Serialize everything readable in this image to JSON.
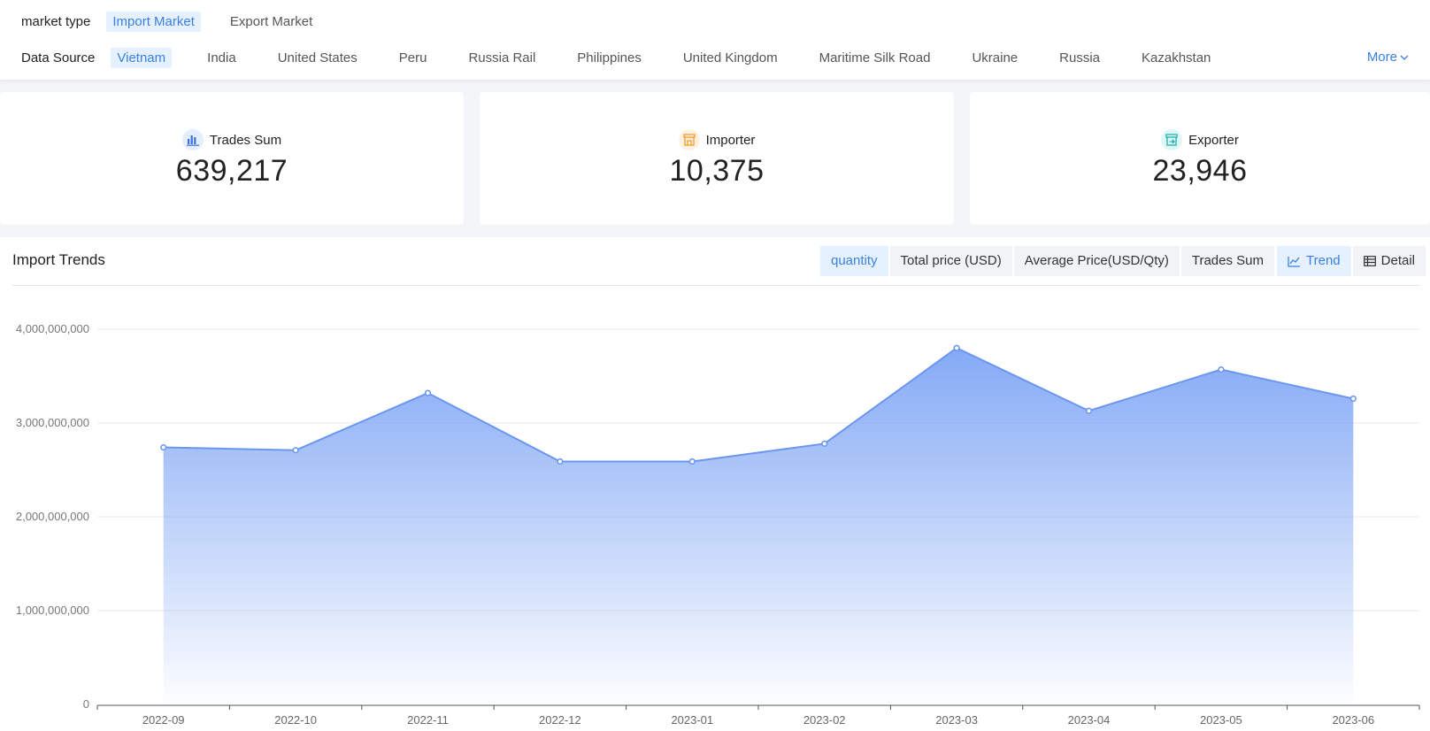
{
  "filters": {
    "market_type": {
      "label": "market type",
      "options": [
        "Import Market",
        "Export Market"
      ],
      "active": 0
    },
    "data_source": {
      "label": "Data Source",
      "options": [
        "Vietnam",
        "India",
        "United States",
        "Peru",
        "Russia Rail",
        "Philippines",
        "United Kingdom",
        "Maritime Silk Road",
        "Ukraine",
        "Russia",
        "Kazakhstan"
      ],
      "active": 0,
      "more_label": "More"
    }
  },
  "stats": [
    {
      "label": "Trades Sum",
      "value": "639,217",
      "icon": "bar-chart-icon",
      "color": "#3a6fe0"
    },
    {
      "label": "Importer",
      "value": "10,375",
      "icon": "store-icon",
      "color": "#f39a2b"
    },
    {
      "label": "Exporter",
      "value": "23,946",
      "icon": "export-store-icon",
      "color": "#19b3b0"
    }
  ],
  "chart_panel": {
    "title": "Import Trends",
    "metric_tabs": [
      "quantity",
      "Total price (USD)",
      "Average Price(USD/Qty)",
      "Trades Sum"
    ],
    "active_metric": 0,
    "view_tabs": [
      {
        "label": "Trend",
        "icon": "line-chart-icon"
      },
      {
        "label": "Detail",
        "icon": "table-icon"
      }
    ],
    "active_view": 0
  },
  "chart_data": {
    "type": "area",
    "categories": [
      "2022-09",
      "2022-10",
      "2022-11",
      "2022-12",
      "2023-01",
      "2023-02",
      "2023-03",
      "2023-04",
      "2023-05",
      "2023-06"
    ],
    "series": [
      {
        "values": [
          2740000000,
          2710000000,
          3320000000,
          2590000000,
          2590000000,
          2780000000,
          3800000000,
          3130000000,
          3570000000,
          3260000000
        ]
      }
    ],
    "y_ticks": [
      "0",
      "1,000,000,000",
      "2,000,000,000",
      "3,000,000,000",
      "4,000,000,000"
    ],
    "ylim": [
      0,
      4000000000
    ],
    "grid": true,
    "line_color": "#6b96f0",
    "fill_color": "#7ea5f5"
  }
}
